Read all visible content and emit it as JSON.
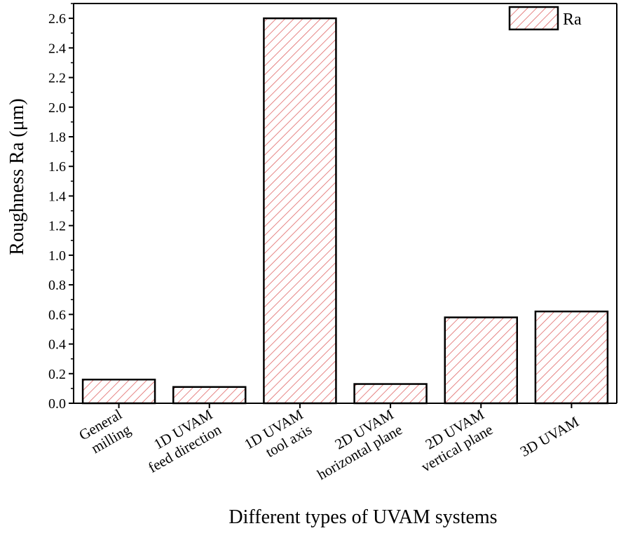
{
  "chart_data": {
    "type": "bar",
    "categories": [
      [
        "General",
        "milling"
      ],
      [
        "1D UVAM",
        "feed direction"
      ],
      [
        "1D UVAM",
        "tool axis"
      ],
      [
        "2D UVAM",
        "horizontal plane"
      ],
      [
        "2D UVAM",
        "vertical plane"
      ],
      [
        "3D UVAM"
      ]
    ],
    "series": [
      {
        "name": "Ra",
        "values": [
          0.16,
          0.11,
          2.6,
          0.13,
          0.58,
          0.62
        ]
      }
    ],
    "xlabel": "Different types of UVAM systems",
    "ylabel": "Roughness Ra (μm)",
    "ylim": [
      0,
      2.7
    ],
    "yticks": [
      "0.0",
      "0.2",
      "0.4",
      "0.6",
      "0.8",
      "1.0",
      "1.2",
      "1.4",
      "1.6",
      "1.8",
      "2.0",
      "2.2",
      "2.4",
      "2.6"
    ],
    "legend_position": "top-right",
    "grid": false,
    "colors": {
      "hatch": "#e06666",
      "bar_fill": "#ffffff",
      "outline": "#000000"
    }
  }
}
